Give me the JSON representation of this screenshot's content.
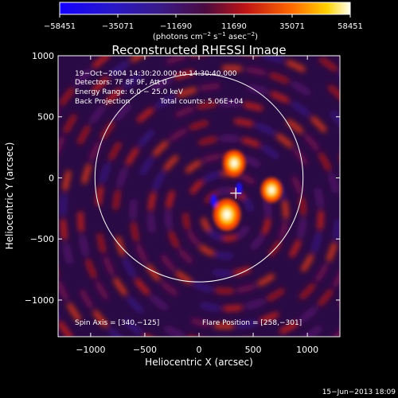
{
  "chart_data": {
    "type": "heatmap",
    "title": "Reconstructed RHESSI Image",
    "xlabel": "Heliocentric X (arcsec)",
    "ylabel": "Heliocentric Y (arcsec)",
    "xlim": [
      -1300,
      1300
    ],
    "ylim": [
      -1300,
      1000
    ],
    "xticks": [
      -1000,
      -500,
      0,
      500,
      1000
    ],
    "xtick_labels": [
      "−1000",
      "−500",
      "0",
      "500",
      "1000"
    ],
    "yticks": [
      -1000,
      -500,
      0,
      500,
      1000
    ],
    "ytick_labels": [
      "−1000",
      "−500",
      "0",
      "500",
      "1000"
    ],
    "colorbar": {
      "ticks": [
        -58451,
        -35071,
        -11690,
        11690,
        35071,
        58451
      ],
      "tick_labels": [
        "−58451",
        "−35071",
        "−11690",
        "11690",
        "35071",
        "58451"
      ],
      "unit_prefix": "(photons cm",
      "unit_exp1": "−2",
      "unit_mid1": " s",
      "unit_exp2": "−1",
      "unit_mid2": " asec",
      "unit_exp3": "−2",
      "unit_suffix": ")",
      "range": [
        -58451,
        58451
      ]
    },
    "annotations": {
      "time": "19−Oct−2004 14:30:20.000 to 14:30:40.000",
      "detectors": "Detectors: 7F 8F 9F, Att 0",
      "energy": "Energy Range: 6.0 − 25.0 keV",
      "method": "Back Projection",
      "counts": "Total counts: 5.06E+04",
      "spin_axis": "Spin Axis = [340,−125]",
      "flare_position": "Flare Position = [258,−301]"
    },
    "solar_disk": {
      "center": [
        0,
        0
      ],
      "radius_arcsec": 960
    },
    "marker": {
      "x": 340,
      "y": -125,
      "symbol": "+"
    },
    "sources": [
      {
        "x": 258,
        "y": -301,
        "value": 58451,
        "label": "peak"
      },
      {
        "x": 325,
        "y": 120,
        "value": 45000
      },
      {
        "x": 670,
        "y": -100,
        "value": 42000
      },
      {
        "x": 135,
        "y": -185,
        "value": -35000
      },
      {
        "x": 370,
        "y": -90,
        "value": -40000
      }
    ]
  },
  "footer": {
    "date": "15−Jun−2013 18:09"
  },
  "colors": {
    "background": "#000000",
    "plot_mid": "#2a0a44",
    "negative": "#1400ff",
    "positive_peak": "#fffff0",
    "disk_line": "#ffffff"
  }
}
